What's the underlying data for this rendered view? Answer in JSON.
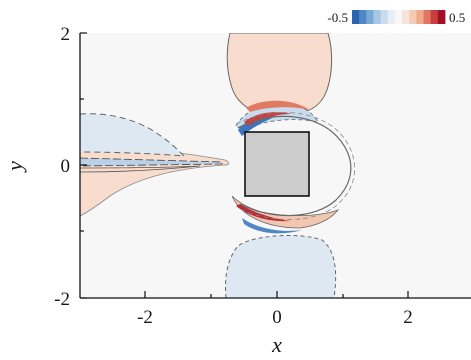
{
  "chart_data": {
    "type": "heatmap",
    "title": "",
    "xlabel": "x",
    "ylabel": "y",
    "xlim": [
      -3,
      3
    ],
    "ylim": [
      -2,
      2
    ],
    "x_ticks": [
      "-2",
      "0",
      "2"
    ],
    "y_ticks": [
      "2",
      "0",
      "-2"
    ],
    "colorbar": {
      "min_label": "-0.5",
      "max_label": "0.5",
      "range": [
        -0.5,
        0.5
      ],
      "colors": [
        "#2a64b0",
        "#4f88c6",
        "#7aa9d6",
        "#a5c6e4",
        "#cadbec",
        "#e7eef6",
        "#f7f7f7",
        "#f9e3d8",
        "#f5cbb5",
        "#f0aa8c",
        "#e0765f",
        "#c83e3e",
        "#a50f26"
      ]
    },
    "body": {
      "shape": "square",
      "center": [
        0,
        0
      ],
      "half_width": 0.5,
      "fill": "#cccccc"
    },
    "background_value": 0
  }
}
